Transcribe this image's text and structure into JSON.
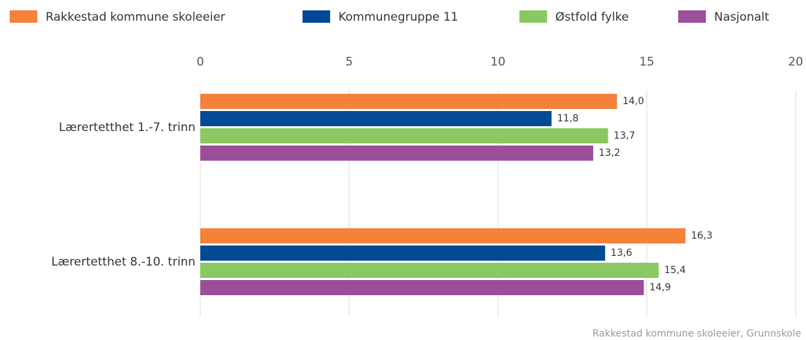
{
  "chart_data": {
    "type": "hbar",
    "categories": [
      "Lærertetthet 1.-7. trinn",
      "Lærertetthet 8.-10. trinn"
    ],
    "series": [
      {
        "name": "Rakkestad kommune skoleeier",
        "color": "#f5813a",
        "values": [
          14.0,
          16.3
        ],
        "value_labels": [
          "14,0",
          "16,3"
        ]
      },
      {
        "name": "Kommunegruppe 11",
        "color": "#034a94",
        "values": [
          11.8,
          13.6
        ],
        "value_labels": [
          "11,8",
          "13,6"
        ]
      },
      {
        "name": "Østfold fylke",
        "color": "#8ac961",
        "values": [
          13.7,
          15.4
        ],
        "value_labels": [
          "13,7",
          "15,4"
        ]
      },
      {
        "name": "Nasjonalt",
        "color": "#9b4f9b",
        "values": [
          13.2,
          14.9
        ],
        "value_labels": [
          "13,2",
          "14,9"
        ]
      }
    ],
    "xlim": [
      0,
      20
    ],
    "xticks": [
      0,
      5,
      10,
      15,
      20
    ],
    "grid": true,
    "legend": "top",
    "source": "Rakkestad kommune skoleeier, Grunnskole"
  }
}
